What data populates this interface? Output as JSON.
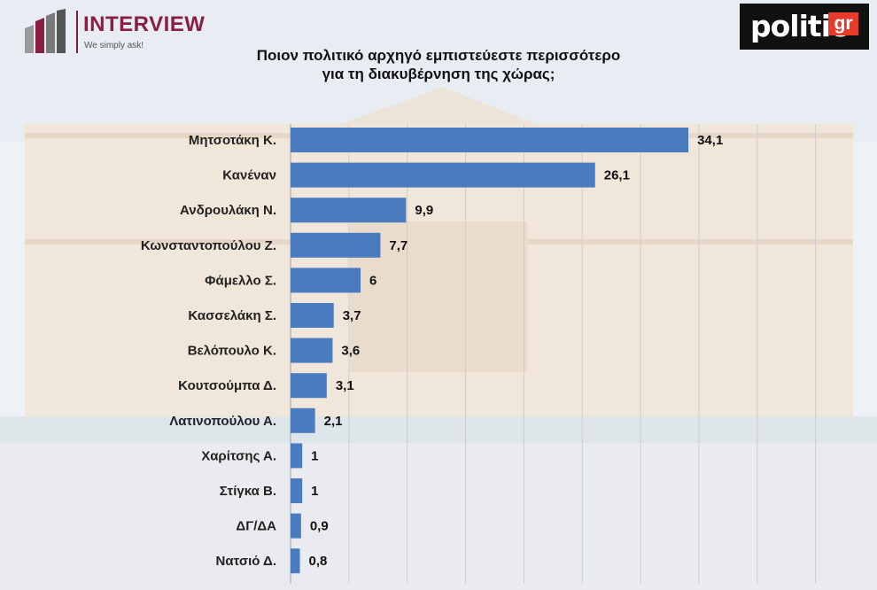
{
  "brand": {
    "name": "INTERVIEW",
    "tagline": "We simply ask!"
  },
  "source_logo": {
    "word": "politic",
    "suffix": "gr"
  },
  "colors": {
    "bar": "#4a7bbf",
    "title": "#111111",
    "brand": "#8a1e43"
  },
  "chart_data": {
    "type": "bar",
    "orientation": "horizontal",
    "title": "Ποιον πολιτικό αρχηγό εμπιστεύεστε περισσότερο για τη διακυβέρνηση της χώρας;",
    "title_lines": [
      "Ποιον πολιτικό αρχηγό εμπιστεύεστε περισσότερο",
      "για τη διακυβέρνηση της χώρας;"
    ],
    "categories": [
      "Μητσοτάκη Κ.",
      "Κανέναν",
      "Ανδρουλάκη Ν.",
      "Κωνσταντοπούλου Ζ.",
      "Φάμελλο Σ.",
      "Κασσελάκη Σ.",
      "Βελόπουλο Κ.",
      "Κουτσούμπα Δ.",
      "Λατινοπούλου Α.",
      "Χαρίτσης Α.",
      "Στίγκα Β.",
      "ΔΓ/ΔΑ",
      "Νατσιό Δ."
    ],
    "values": [
      34.1,
      26.1,
      9.9,
      7.7,
      6,
      3.7,
      3.6,
      3.1,
      2.1,
      1,
      1,
      0.9,
      0.8
    ],
    "value_labels": [
      "34,1",
      "26,1",
      "9,9",
      "7,7",
      "6",
      "3,7",
      "3,6",
      "3,1",
      "2,1",
      "1",
      "1",
      "0,9",
      "0,8"
    ],
    "xlim": [
      0,
      50
    ],
    "grid": true,
    "legend": "none"
  }
}
